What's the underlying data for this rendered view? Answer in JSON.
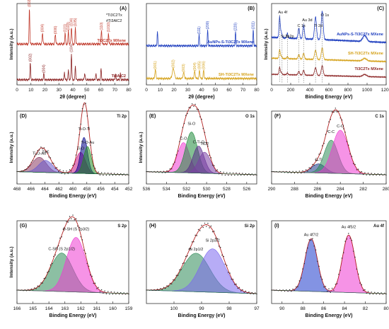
{
  "chart_data": [
    {
      "id": "A",
      "type": "line",
      "label": "(A)",
      "xlabel": "2θ (degree)",
      "ylabel": "Intensity (a.u.)",
      "xlim": [
        0,
        80
      ],
      "xticks": [
        0,
        10,
        20,
        30,
        40,
        50,
        60,
        70,
        80
      ],
      "legend_lines": [
        "*Ti3C2Tx",
        "#Ti3AlC2"
      ],
      "series": [
        {
          "name": "Ti3C2Tx MXene",
          "color": "#c0392b",
          "peaks": [
            [
              8.9,
              0.95,
              0.5
            ],
            [
              18.3,
              0.3,
              0.6
            ],
            [
              27.5,
              0.25,
              0.6
            ],
            [
              34.5,
              0.3,
              0.5
            ],
            [
              36.8,
              0.35,
              0.5
            ],
            [
              39.0,
              0.45,
              0.6
            ],
            [
              41.8,
              0.45,
              0.5
            ],
            [
              60.5,
              0.35,
              0.6
            ],
            [
              65.5,
              0.3,
              0.5
            ]
          ],
          "peak_labels": [
            {
              "x": 8.9,
              "text": "(002)"
            },
            {
              "x": 18.3,
              "text": "(004)"
            },
            {
              "x": 27.5,
              "text": "(006)"
            },
            {
              "x": 34.5,
              "text": "(101)"
            },
            {
              "x": 36.8,
              "text": "(103)"
            },
            {
              "x": 39.0,
              "text": "(104)"
            },
            {
              "x": 41.8,
              "text": "(105)"
            },
            {
              "x": 60.5,
              "text": "(110)"
            },
            {
              "x": 65.5,
              "text": "(1010)"
            }
          ]
        },
        {
          "name": "Ti3AlC2",
          "color": "#8b2323",
          "peaks": [
            [
              9.5,
              0.55,
              0.5
            ],
            [
              19.2,
              0.2,
              0.5
            ],
            [
              34.0,
              0.25,
              0.5
            ],
            [
              36.8,
              0.3,
              0.5
            ],
            [
              39.0,
              0.85,
              0.5
            ],
            [
              41.8,
              0.45,
              0.5
            ],
            [
              48.5,
              0.2,
              0.6
            ],
            [
              56.5,
              0.2,
              0.5
            ],
            [
              60.2,
              0.35,
              0.5
            ],
            [
              70.5,
              0.2,
              0.5
            ],
            [
              74.0,
              0.2,
              0.5
            ]
          ],
          "peak_labels": [
            {
              "x": 9.5,
              "text": "(002)"
            },
            {
              "x": 19.2,
              "text": "(004)"
            },
            {
              "x": 39.0,
              "text": "(104)"
            }
          ]
        }
      ]
    },
    {
      "id": "B",
      "type": "line",
      "label": "(B)",
      "xlabel": "2θ (degree)",
      "ylabel": "",
      "xlim": [
        0,
        80
      ],
      "xticks": [
        0,
        10,
        20,
        30,
        40,
        50,
        60,
        70,
        80
      ],
      "series": [
        {
          "name": "AuNPs-S-Ti3C2Tx MXene",
          "color": "#1f3fbf",
          "peaks": [
            [
              8.0,
              0.45,
              0.5
            ],
            [
              38.2,
              0.35,
              0.5
            ],
            [
              44.4,
              0.5,
              0.5
            ],
            [
              64.6,
              0.45,
              0.5
            ],
            [
              77.5,
              0.5,
              0.5
            ]
          ],
          "peak_labels": [
            {
              "x": 38.2,
              "text": "(111)"
            },
            {
              "x": 44.4,
              "text": "(200)"
            },
            {
              "x": 64.6,
              "text": "(220)"
            },
            {
              "x": 77.5,
              "text": "(311)"
            }
          ]
        },
        {
          "name": "SH-Ti3C2Tx MXene",
          "color": "#d4a017",
          "peaks": [
            [
              6.5,
              0.3,
              0.8
            ],
            [
              19.5,
              0.35,
              1.5
            ],
            [
              27.0,
              0.2,
              1.0
            ],
            [
              35.0,
              0.25,
              0.8
            ],
            [
              38.5,
              0.3,
              0.6
            ],
            [
              41.5,
              0.3,
              0.6
            ]
          ],
          "peak_labels": [
            {
              "x": 6.5,
              "text": "(001)"
            },
            {
              "x": 19.5,
              "text": "(002)"
            },
            {
              "x": 27.0,
              "text": "(003)"
            },
            {
              "x": 35.0,
              "text": "(004)"
            },
            {
              "x": 38.5,
              "text": "(005)"
            },
            {
              "x": 41.5,
              "text": "(006)"
            }
          ]
        }
      ]
    },
    {
      "id": "C",
      "type": "line",
      "label": "(C)",
      "xlabel": "Binding Energy (eV)",
      "ylabel": "Intensity (a.u.)",
      "xlim": [
        0,
        1200
      ],
      "xticks": [
        0,
        200,
        400,
        600,
        800,
        1000,
        1200
      ],
      "annotations": [
        "Au 4f",
        "Si 2p",
        "S 2p",
        "C 1s",
        "Au 3d",
        "Ti 2p",
        "O 1s"
      ],
      "series": [
        {
          "name": "AuNPs-S-Ti3C2Tx MXene",
          "color": "#1f3fbf"
        },
        {
          "name": "SH-Ti3C2Tx MXene",
          "color": "#d4a017"
        },
        {
          "name": "Ti3C2Tx MXene",
          "color": "#8b2323"
        }
      ]
    },
    {
      "id": "D",
      "type": "area",
      "label": "(D)",
      "title": "Ti 2p",
      "xlabel": "Binding Energy (eV)",
      "ylabel": "Intensity (a.u.)",
      "xlim": [
        468,
        452
      ],
      "xticks": [
        468,
        466,
        464,
        462,
        460,
        458,
        456,
        454,
        452
      ],
      "components": [
        {
          "name": "Ti-O-Au",
          "center": 464.8,
          "height": 0.25,
          "width": 1.0,
          "color": "#8b3a62"
        },
        {
          "name": "Ti-C",
          "center": 463.9,
          "height": 0.2,
          "width": 1.0,
          "color": "#6a5acd"
        },
        {
          "name": "Ti-O",
          "center": 458.9,
          "height": 0.35,
          "width": 0.7,
          "color": "#c71585"
        },
        {
          "name": "Ti-O-Ti",
          "center": 458.4,
          "height": 0.6,
          "width": 0.5,
          "color": "#00008b"
        },
        {
          "name": "Ti-O-Au",
          "center": 457.9,
          "height": 0.45,
          "width": 0.55,
          "color": "#228b22"
        }
      ]
    },
    {
      "id": "E",
      "type": "area",
      "label": "(E)",
      "title": "O 1s",
      "xlabel": "Binding Energy (eV)",
      "ylabel": "Intensity (a.u.)",
      "xlim": [
        536,
        525
      ],
      "xticks": [
        536,
        534,
        532,
        530,
        528,
        526
      ],
      "components": [
        {
          "name": "C-O",
          "center": 532.3,
          "height": 0.5,
          "width": 0.6,
          "color": "#ee3bd2"
        },
        {
          "name": "Si-O",
          "center": 531.5,
          "height": 0.68,
          "width": 0.6,
          "color": "#1e8b3a"
        },
        {
          "name": "C-Ti-O",
          "center": 530.8,
          "height": 0.45,
          "width": 0.55,
          "color": "#5a2a8a"
        },
        {
          "name": "TiO2",
          "center": 530.2,
          "height": 0.35,
          "width": 0.6,
          "color": "#7b3fa5"
        }
      ]
    },
    {
      "id": "F",
      "type": "area",
      "label": "(F)",
      "title": "C 1s",
      "xlabel": "Binding Energy (eV)",
      "ylabel": "",
      "xlim": [
        290,
        280
      ],
      "xticks": [
        290,
        288,
        286,
        284,
        282,
        280
      ],
      "components": [
        {
          "name": "C-Ti",
          "center": 285.9,
          "height": 0.15,
          "width": 0.6,
          "color": "#1e3a8a"
        },
        {
          "name": "C-C",
          "center": 284.8,
          "height": 0.55,
          "width": 0.6,
          "color": "#2e8b57"
        },
        {
          "name": "C-O",
          "center": 284.0,
          "height": 0.72,
          "width": 0.7,
          "color": "#ee3bd2"
        }
      ]
    },
    {
      "id": "G",
      "type": "area",
      "label": "(G)",
      "title": "S 2p",
      "xlabel": "Binding Energy (eV)",
      "ylabel": "Intensity (a.u.)",
      "xlim": [
        166,
        159
      ],
      "xticks": [
        166,
        165,
        164,
        163,
        162,
        161,
        160,
        159
      ],
      "components": [
        {
          "name": "C-SH (S 2p1/2)",
          "center": 163.2,
          "height": 0.55,
          "width": 0.7,
          "color": "#2e8b57"
        },
        {
          "name": "C-SH (S 2p3/2)",
          "center": 162.3,
          "height": 0.78,
          "width": 0.6,
          "color": "#ee3bd2"
        }
      ]
    },
    {
      "id": "H",
      "type": "area",
      "label": "(H)",
      "title": "Si 2p",
      "xlabel": "Binding Energy (eV)",
      "ylabel": "",
      "xlim": [
        101,
        97
      ],
      "xticks": [
        100,
        99,
        98,
        97
      ],
      "components": [
        {
          "name": "Si 2p1/2",
          "center": 99.2,
          "height": 0.55,
          "width": 0.5,
          "color": "#2e8b57"
        },
        {
          "name": "Si 2p3/2",
          "center": 98.6,
          "height": 0.62,
          "width": 0.45,
          "color": "#7b68ee"
        }
      ]
    },
    {
      "id": "I",
      "type": "area",
      "label": "(I)",
      "title": "Au 4f",
      "xlabel": "Binding Energy (eV)",
      "ylabel": "",
      "xlim": [
        91,
        80
      ],
      "xticks": [
        90,
        88,
        86,
        84,
        82,
        80
      ],
      "components": [
        {
          "name": "Au 4f7/2",
          "center": 87.2,
          "height": 0.75,
          "width": 0.6,
          "color": "#1e3acc"
        },
        {
          "name": "Au 4f5/2",
          "center": 83.6,
          "height": 0.82,
          "width": 0.6,
          "color": "#ee3bd2"
        }
      ]
    }
  ]
}
